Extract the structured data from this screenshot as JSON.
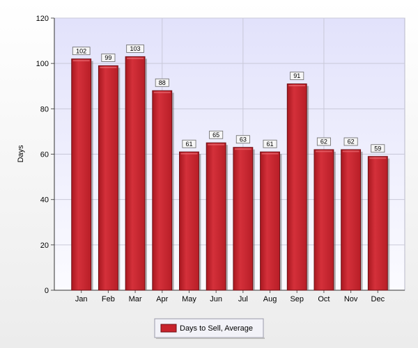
{
  "chart_data": {
    "type": "bar",
    "title": "",
    "xlabel": "",
    "ylabel": "Days",
    "ylim": [
      0,
      120
    ],
    "yticks": [
      0,
      20,
      40,
      60,
      80,
      100,
      120
    ],
    "categories": [
      "Jan",
      "Feb",
      "Mar",
      "Apr",
      "May",
      "Jun",
      "Jul",
      "Aug",
      "Sep",
      "Oct",
      "Nov",
      "Dec"
    ],
    "series": [
      {
        "name": "Days to Sell, Average",
        "values": [
          102,
          99,
          103,
          88,
          61,
          65,
          63,
          61,
          91,
          62,
          62,
          59
        ],
        "color": "#c8232c"
      }
    ],
    "data_labels": [
      "102",
      "99",
      "103",
      "88",
      "61",
      "65",
      "63",
      "61",
      "91",
      "62",
      "62",
      "59"
    ],
    "grid": true,
    "legend_position": "bottom-center",
    "colors": {
      "plot_background_top": "#e2e2fb",
      "plot_background_bottom": "#fafafe",
      "page_background_top": "#ffffff",
      "page_background_bottom": "#eeeeee",
      "grid": "#c8c8d8",
      "bar": "#c8232c",
      "bar_edge": "#6e0f14"
    }
  }
}
